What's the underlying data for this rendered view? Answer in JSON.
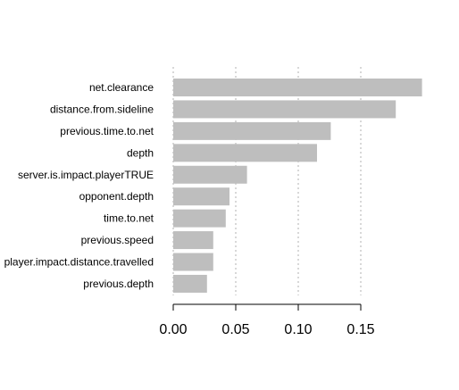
{
  "chart_data": {
    "type": "bar",
    "orientation": "horizontal",
    "title": "",
    "xlabel": "",
    "ylabel": "",
    "categories": [
      "net.clearance",
      "distance.from.sideline",
      "previous.time.to.net",
      "depth",
      "server.is.impact.playerTRUE",
      "opponent.depth",
      "time.to.net",
      "previous.speed",
      "player.impact.distance.travelled",
      "previous.depth"
    ],
    "values": [
      0.199,
      0.178,
      0.126,
      0.115,
      0.059,
      0.045,
      0.042,
      0.032,
      0.032,
      0.027
    ],
    "xlim": [
      0,
      0.2
    ],
    "x_ticks": [
      0,
      0.05,
      0.1,
      0.15
    ],
    "x_tick_labels": [
      "0.00",
      "0.05",
      "0.10",
      "0.15"
    ],
    "grid": "vertical-dotted",
    "legend": "none",
    "bar_color": "#bebebe"
  }
}
